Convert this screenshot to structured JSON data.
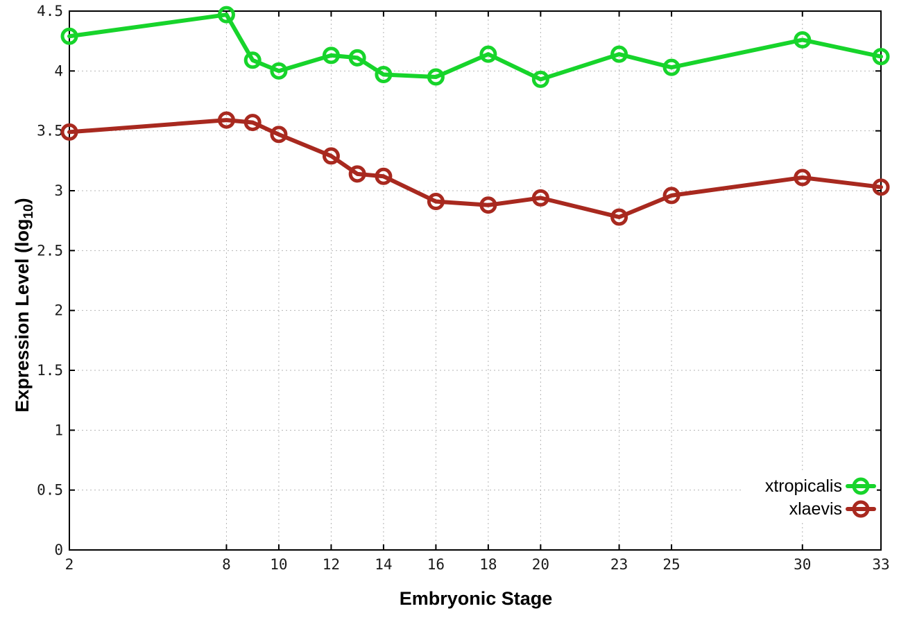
{
  "chart_data": {
    "type": "line",
    "title": "",
    "xlabel": "Embryonic Stage",
    "ylabel": "Expression Level (log10)",
    "ylabel_parts": {
      "main": "Expression Level (log",
      "sub": "10",
      "end": ")"
    },
    "x": [
      2,
      8,
      9,
      10,
      12,
      13,
      14,
      16,
      18,
      20,
      23,
      25,
      30,
      33
    ],
    "x_tick_values": [
      2,
      8,
      10,
      12,
      14,
      16,
      18,
      20,
      23,
      25,
      30,
      33
    ],
    "x_tick_labels": [
      "2",
      "8",
      "10",
      "12",
      "14",
      "16",
      "18",
      "20",
      "23",
      "25",
      "30",
      "33"
    ],
    "y_tick_values": [
      0,
      0.5,
      1,
      1.5,
      2,
      2.5,
      3,
      3.5,
      4,
      4.5
    ],
    "y_tick_labels": [
      "0",
      "0.5",
      "1",
      "1.5",
      "2",
      "2.5",
      "3",
      "3.5",
      "4",
      "4.5"
    ],
    "xlim": [
      2,
      33
    ],
    "ylim": [
      0,
      4.5
    ],
    "grid": true,
    "legend_position": "inside-bottom-right",
    "series": [
      {
        "name": "xtropicalis",
        "color": "#17d42b",
        "marker": "open-circle",
        "values": [
          4.29,
          4.47,
          4.09,
          4.0,
          4.13,
          4.11,
          3.97,
          3.95,
          4.14,
          3.93,
          4.14,
          4.03,
          4.26,
          4.12
        ]
      },
      {
        "name": "xlaevis",
        "color": "#a8291f",
        "marker": "open-circle",
        "values": [
          3.49,
          3.59,
          3.57,
          3.47,
          3.29,
          3.14,
          3.12,
          2.91,
          2.88,
          2.94,
          2.78,
          2.96,
          3.11,
          3.03
        ]
      }
    ],
    "style": {
      "grid_color": "#b4b4b4",
      "axis_color": "#000000",
      "tick_label_color": "#1a1a1a",
      "line_width": 6,
      "marker_radius": 10,
      "marker_stroke": 5
    }
  }
}
